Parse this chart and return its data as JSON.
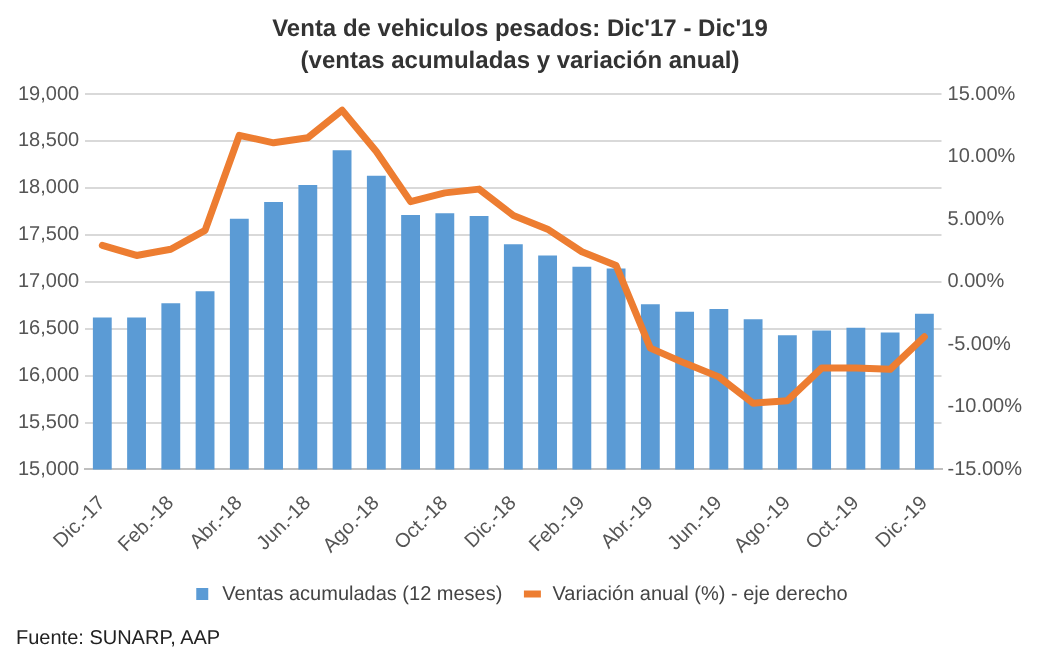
{
  "chart_data": {
    "type": "bar",
    "title": "Venta de vehiculos pesados: Dic'17 - Dic'19",
    "subtitle": "(ventas acumuladas  y variación anual)",
    "categories": [
      "Dic.-17",
      null,
      "Feb.-18",
      null,
      "Abr.-18",
      null,
      "Jun.-18",
      null,
      "Ago.-18",
      null,
      "Oct.-18",
      null,
      "Dic.-18",
      null,
      "Feb.-19",
      null,
      "Abr.-19",
      null,
      "Jun.-19",
      null,
      "Ago.-19",
      null,
      "Oct.-19",
      null,
      "Dic.-19"
    ],
    "series": [
      {
        "name": "Ventas acumuladas (12 meses)",
        "color": "#5b9bd5",
        "values": [
          16620,
          16620,
          16770,
          16900,
          17670,
          17850,
          18030,
          18400,
          18130,
          17710,
          17730,
          17700,
          17400,
          17280,
          17160,
          17140,
          16760,
          16680,
          16710,
          16600,
          16430,
          16480,
          16510,
          16460,
          16660
        ]
      },
      {
        "name": "Variación anual (%) - eje derecho",
        "type": "line",
        "axis": "y2",
        "color": "#ed7d31",
        "values": [
          2.9,
          2.1,
          2.6,
          4.1,
          11.7,
          11.1,
          11.5,
          13.7,
          10.4,
          6.4,
          7.1,
          7.4,
          5.3,
          4.2,
          2.4,
          1.3,
          -5.3,
          -6.5,
          -7.6,
          -9.7,
          -9.5,
          -6.9,
          -6.9,
          -7.0,
          -4.4
        ]
      }
    ],
    "ylim": [
      15000,
      19000
    ],
    "yticks": [
      {
        "value": 15000,
        "label": "15,000"
      },
      {
        "value": 15500,
        "label": "15,500"
      },
      {
        "value": 16000,
        "label": "16,000"
      },
      {
        "value": 16500,
        "label": "16,500"
      },
      {
        "value": 17000,
        "label": "17,000"
      },
      {
        "value": 17500,
        "label": "17,500"
      },
      {
        "value": 18000,
        "label": "18,000"
      },
      {
        "value": 18500,
        "label": "18,500"
      },
      {
        "value": 19000,
        "label": "19,000"
      }
    ],
    "y2lim": [
      -15,
      15
    ],
    "y2ticks": [
      {
        "value": -15,
        "label": "-15.00%"
      },
      {
        "value": -10,
        "label": "-10.00%"
      },
      {
        "value": -5,
        "label": "-5.00%"
      },
      {
        "value": 0,
        "label": "0.00%"
      },
      {
        "value": 5,
        "label": "5.00%"
      },
      {
        "value": 10,
        "label": "10.00%"
      },
      {
        "value": 15,
        "label": "15.00%"
      }
    ],
    "grid": "y",
    "legend": "bottom",
    "marker": "none",
    "line_style": "solid",
    "annotations": [
      "Fuente: SUNARP, AAP"
    ]
  }
}
